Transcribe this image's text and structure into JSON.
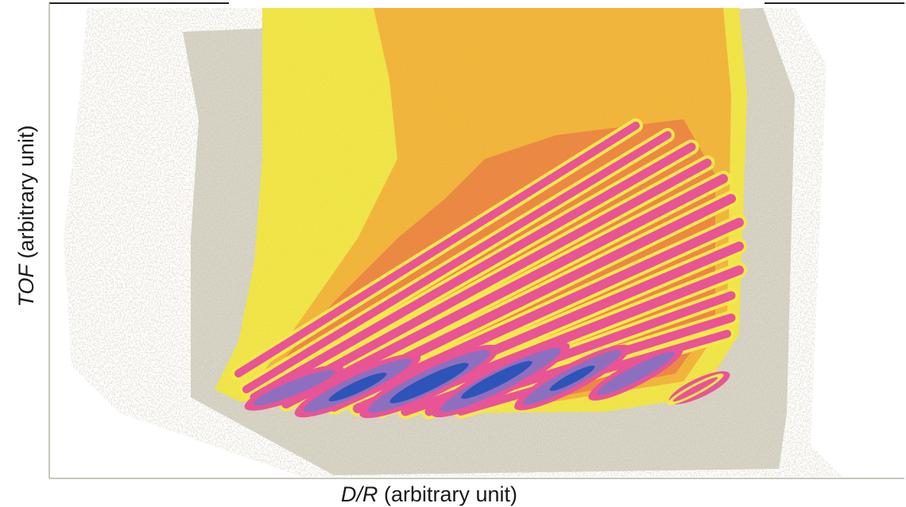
{
  "chart_data": {
    "type": "heatmap",
    "title": "",
    "xlabel_italic": "D/R",
    "xlabel_rest": " (arbitrary unit)",
    "ylabel_italic": "TOF",
    "ylabel_rest": " (arbitrary unit)",
    "x_ticks": [],
    "y_ticks": [],
    "grid": false,
    "legend": "none",
    "colorscale": [
      {
        "level": "background-sparse",
        "color": "#cfcab8"
      },
      {
        "level": "low",
        "color": "#f5e94a"
      },
      {
        "level": "medium",
        "color": "#f6b93e"
      },
      {
        "level": "medium-high",
        "color": "#f08c45"
      },
      {
        "level": "high",
        "color": "#e85496"
      },
      {
        "level": "very-high",
        "color": "#8d6fc0"
      },
      {
        "level": "peak",
        "color": "#2d54b8"
      }
    ]
  }
}
